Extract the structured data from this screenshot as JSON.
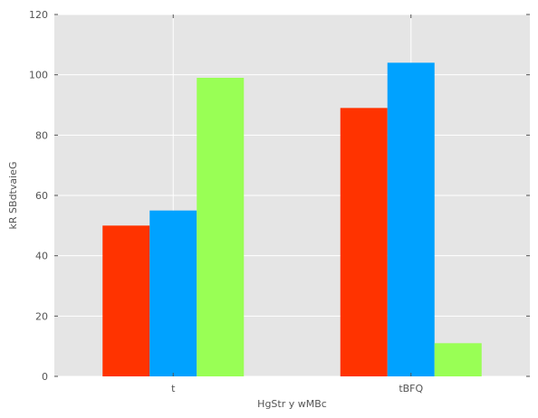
{
  "chart_data": {
    "type": "bar",
    "categories": [
      "t",
      "tBFQ"
    ],
    "series": [
      {
        "values": [
          50,
          89
        ],
        "color": "#ff3300"
      },
      {
        "values": [
          55,
          104
        ],
        "color": "#00a2ff"
      },
      {
        "values": [
          99,
          11
        ],
        "color": "#99ff55"
      }
    ],
    "xlabel": "HgStr y wMBc",
    "ylabel": "kR SBdtvaieG",
    "ylim": [
      0,
      120
    ],
    "yticks": [
      0,
      20,
      40,
      60,
      80,
      100,
      120
    ],
    "grid": true,
    "background": "#e5e5e5",
    "grid_color": "#ffffff"
  }
}
